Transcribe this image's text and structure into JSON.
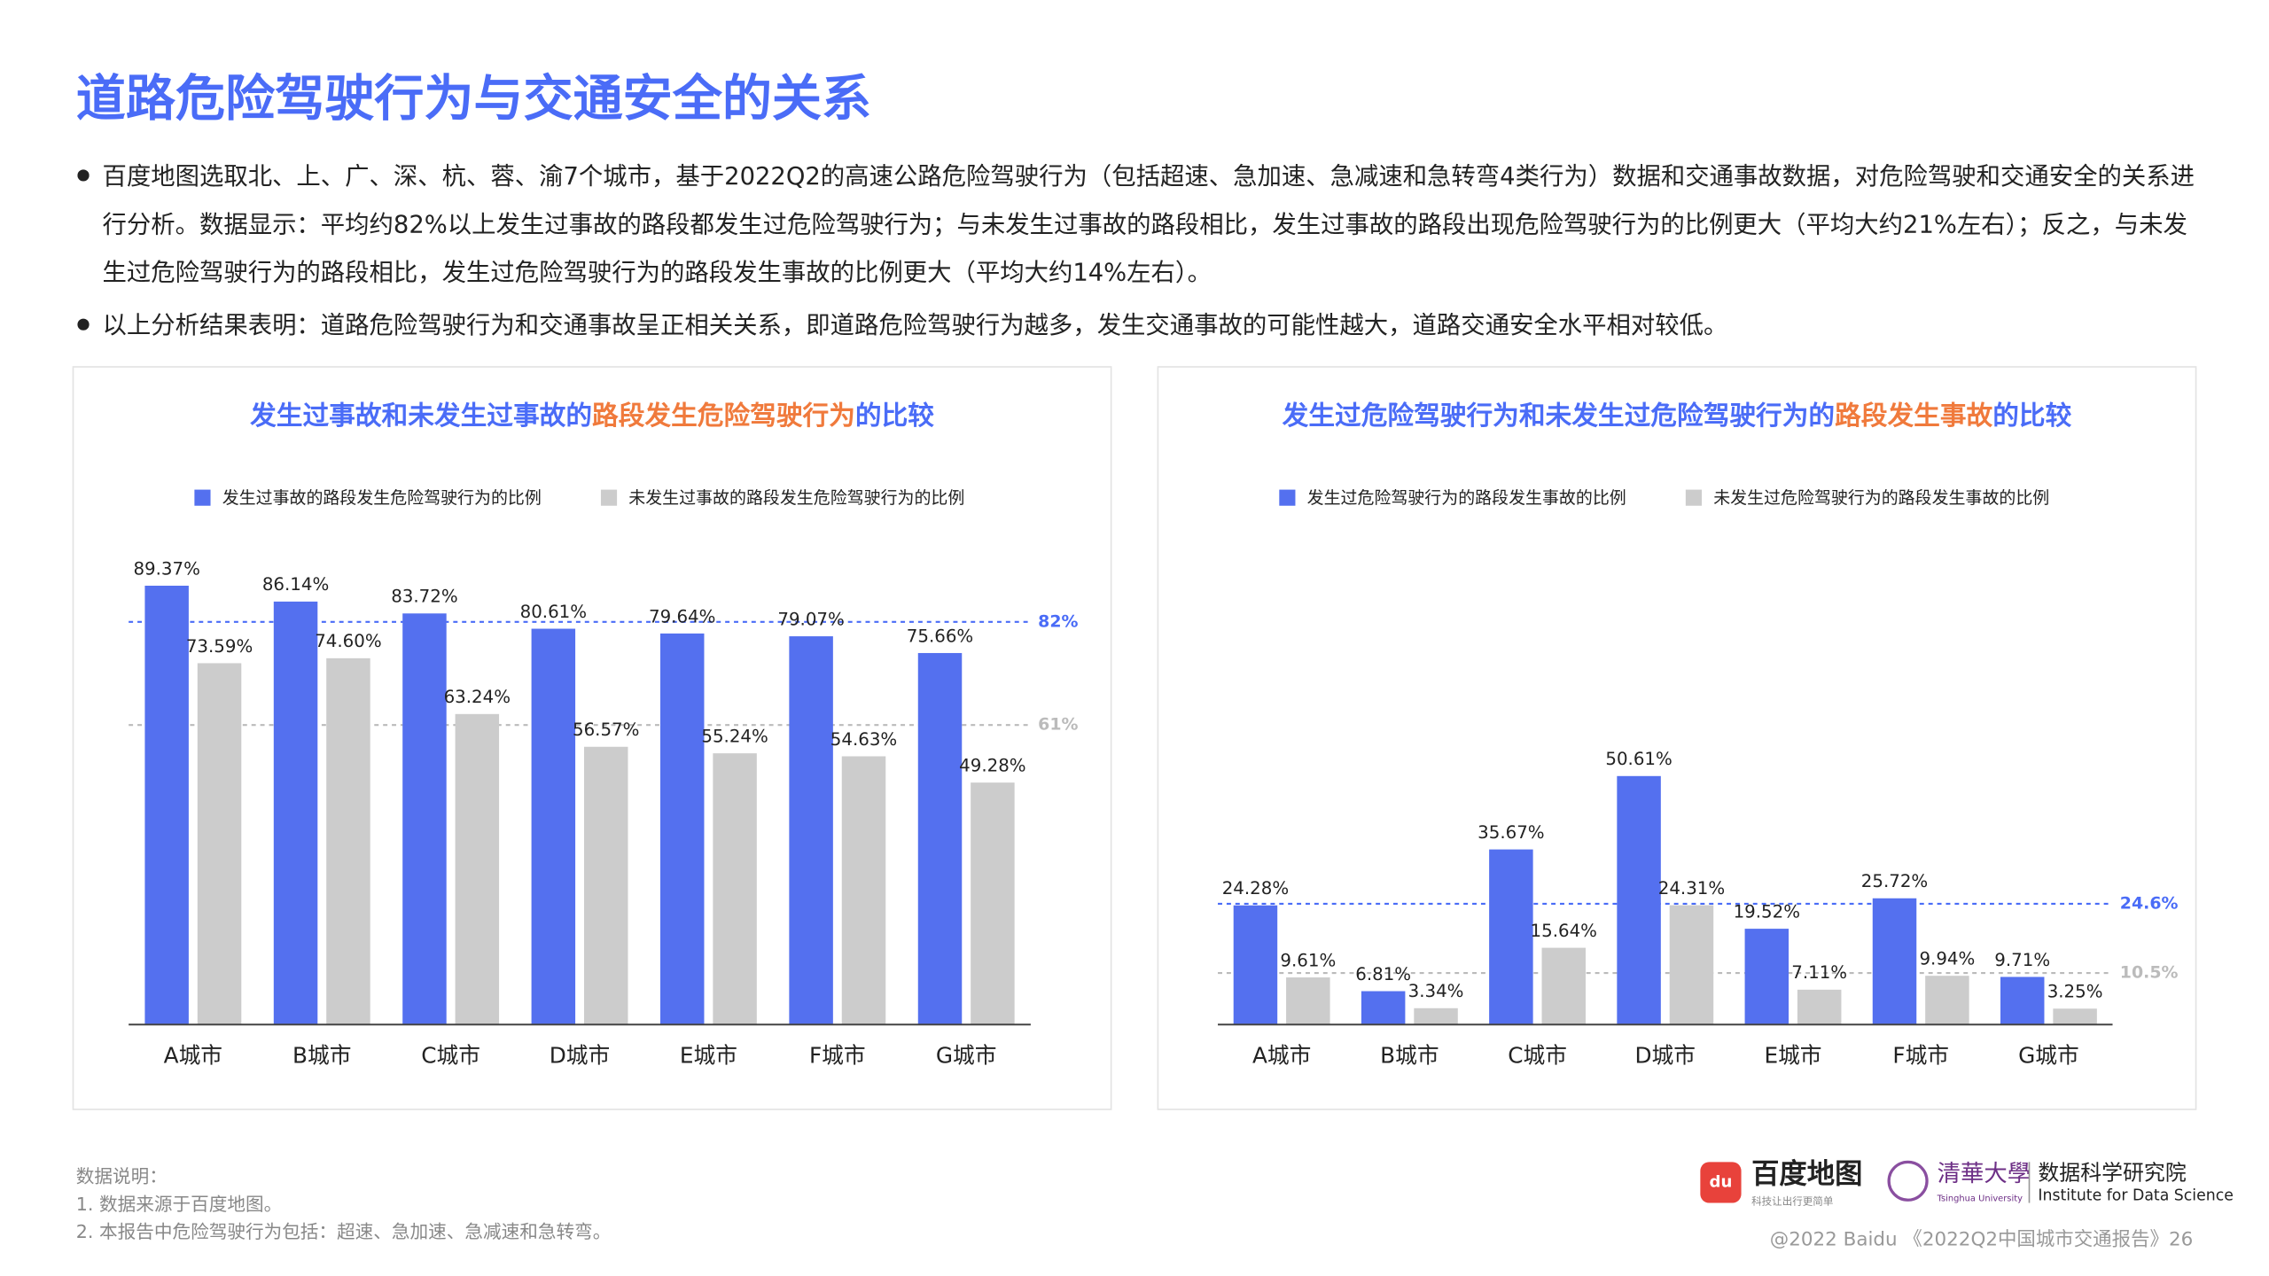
{
  "header": {
    "title": "道路危险驾驶行为与交通安全的关系"
  },
  "bullets": [
    "百度地图选取北、上、广、深、杭、蓉、渝7个城市，基于2022Q2的高速公路危险驾驶行为（包括超速、急加速、急减速和急转弯4类行为）数据和交通事故数据，对危险驾驶和交通安全的关系进行分析。数据显示：平均约82%以上发生过事故的路段都发生过危险驾驶行为；与未发生过事故的路段相比，发生过事故的路段出现危险驾驶行为的比例更大（平均大约21%左右）；反之，与未发生过危险驾驶行为的路段相比，发生过危险驾驶行为的路段发生事故的比例更大（平均大约14%左右）。",
    "以上分析结果表明：道路危险驾驶行为和交通事故呈正相关关系，即道路危险驾驶行为越多，发生交通事故的可能性越大，道路交通安全水平相对较低。"
  ],
  "chart_data": [
    {
      "type": "bar",
      "title": [
        "发生过事故和未发生过事故的",
        "路段发生危险驾驶行为",
        "的比较"
      ],
      "title_highlight": 1,
      "categories": [
        "A城市",
        "B城市",
        "C城市",
        "D城市",
        "E城市",
        "F城市",
        "G城市"
      ],
      "series": [
        {
          "name": "发生过事故的路段发生危险驾驶行为的比例",
          "color": "#5470ef",
          "values": [
            89.37,
            86.14,
            83.72,
            80.61,
            79.64,
            79.07,
            75.66
          ],
          "value_labels": [
            "89.37%",
            "86.14%",
            "83.72%",
            "80.61%",
            "79.64%",
            "79.07%",
            "75.66%"
          ]
        },
        {
          "name": "未发生过事故的路段发生危险驾驶行为的比例",
          "color": "#cccccc",
          "values": [
            73.59,
            74.6,
            63.24,
            56.57,
            55.24,
            54.63,
            49.28
          ],
          "value_labels": [
            "73.59%",
            "74.60%",
            "63.24%",
            "56.57%",
            "55.24%",
            "54.63%",
            "49.28%"
          ]
        }
      ],
      "reference_lines": [
        {
          "value": 82,
          "label": "82%",
          "color": "#4a6cf7"
        },
        {
          "value": 61,
          "label": "61%",
          "color": "#bbbbbb"
        }
      ],
      "ylim": [
        0,
        100
      ]
    },
    {
      "type": "bar",
      "title": [
        "发生过危险驾驶行为和未发生过危险驾驶行为的",
        "路段发生事故",
        "的比较"
      ],
      "title_highlight": 1,
      "categories": [
        "A城市",
        "B城市",
        "C城市",
        "D城市",
        "E城市",
        "F城市",
        "G城市"
      ],
      "series": [
        {
          "name": "发生过危险驾驶行为的路段发生事故的比例",
          "color": "#5470ef",
          "values": [
            24.28,
            6.81,
            35.67,
            50.61,
            19.52,
            25.72,
            9.71
          ],
          "value_labels": [
            "24.28%",
            "6.81%",
            "35.67%",
            "50.61%",
            "19.52%",
            "25.72%",
            "9.71%"
          ]
        },
        {
          "name": "未发生过危险驾驶行为的路段发生事故的比例",
          "color": "#cccccc",
          "values": [
            9.61,
            3.34,
            15.64,
            24.31,
            7.11,
            9.94,
            3.25
          ],
          "value_labels": [
            "9.61%",
            "3.34%",
            "15.64%",
            "24.31%",
            "7.11%",
            "9.94%",
            "3.25%"
          ]
        }
      ],
      "reference_lines": [
        {
          "value": 24.6,
          "label": "24.6%",
          "color": "#4a6cf7"
        },
        {
          "value": 10.5,
          "label": "10.5%",
          "color": "#bbbbbb"
        }
      ],
      "ylim": [
        0,
        100
      ]
    }
  ],
  "notes": [
    "数据说明：",
    "1.  数据来源于百度地图。",
    "2.  本报告中危险驾驶行为包括：超速、急加速、急减速和急转弯。"
  ],
  "logos": {
    "baidu": "百度地图",
    "baidu_slogan": "科技让出行更简单",
    "tsinghua": "清華大學",
    "tsinghua_en": "Tsinghua University",
    "institute": "数据科学研究院",
    "institute_en": "Institute for Data Science"
  },
  "footer": "@2022 Baidu 《2022Q2中国城市交通报告》26"
}
